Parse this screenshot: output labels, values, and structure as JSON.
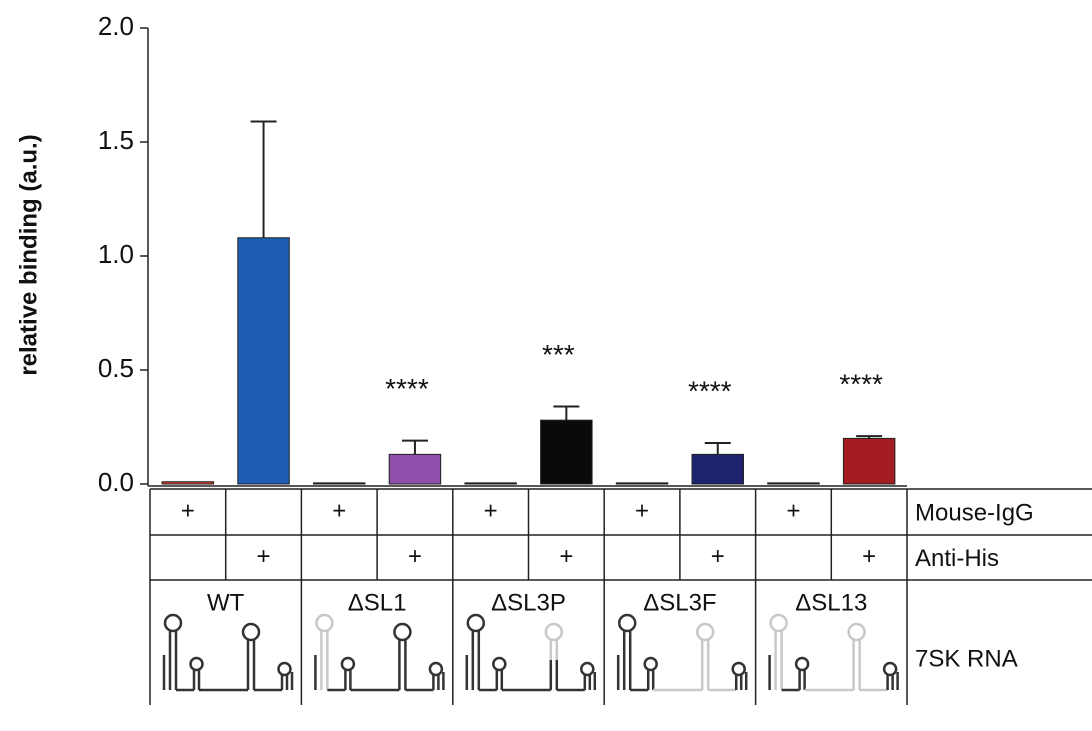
{
  "chart_data": {
    "type": "bar",
    "y_label": "relative binding (a.u.)",
    "ylim": [
      0,
      2.0
    ],
    "yticks": [
      {
        "value": 0,
        "label": "0.0"
      },
      {
        "value": 0.5,
        "label": "0.5"
      },
      {
        "value": 1.0,
        "label": "1.0"
      },
      {
        "value": 1.5,
        "label": "1.5"
      },
      {
        "value": 2.0,
        "label": "2.0"
      }
    ],
    "categories": [
      "WT",
      "ΔSL1",
      "ΔSL3P",
      "ΔSL3F",
      "ΔSL13"
    ],
    "category_row_label": "7SK RNA",
    "series": [
      {
        "name": "Mouse-IgG",
        "marker": "+",
        "colors": [
          "#d23a2a",
          "#333333",
          "#333333",
          "#333333",
          "#333333"
        ],
        "values": [
          0.01,
          0.005,
          0.005,
          0.005,
          0.005
        ]
      },
      {
        "name": "Anti-His",
        "marker": "+",
        "colors": [
          "#1f5cb4",
          "#8d4fa9",
          "#0a0a0a",
          "#1e2370",
          "#a31c22"
        ],
        "values": [
          1.08,
          0.13,
          0.28,
          0.13,
          0.2
        ],
        "errors": [
          0.51,
          0.06,
          0.06,
          0.05,
          0.01
        ],
        "annotations": [
          null,
          "****",
          "***",
          "****",
          "****"
        ]
      }
    ]
  }
}
